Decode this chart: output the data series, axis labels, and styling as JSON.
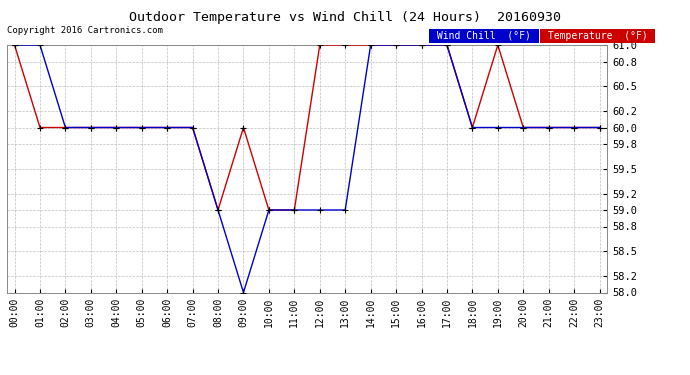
{
  "title": "Outdoor Temperature vs Wind Chill (24 Hours)  20160930",
  "copyright": "Copyright 2016 Cartronics.com",
  "background_color": "#ffffff",
  "plot_bg_color": "#ffffff",
  "grid_color": "#b0b0b0",
  "ylim_min": 58.0,
  "ylim_max": 61.0,
  "yticks": [
    58.0,
    58.2,
    58.5,
    58.8,
    59.0,
    59.2,
    59.5,
    59.8,
    60.0,
    60.2,
    60.5,
    60.8,
    61.0
  ],
  "xtick_labels": [
    "00:00",
    "01:00",
    "02:00",
    "03:00",
    "04:00",
    "05:00",
    "06:00",
    "07:00",
    "08:00",
    "09:00",
    "10:00",
    "11:00",
    "12:00",
    "13:00",
    "14:00",
    "15:00",
    "16:00",
    "17:00",
    "18:00",
    "19:00",
    "20:00",
    "21:00",
    "22:00",
    "23:00"
  ],
  "temp_color": "#cc0000",
  "wind_color": "#0000cc",
  "marker_color": "#000000",
  "legend_wind_bg": "#0000cc",
  "legend_temp_bg": "#cc0000",
  "legend_text_color": "#ffffff",
  "temp_hours": [
    0,
    1,
    2,
    3,
    4,
    5,
    6,
    7,
    8,
    9,
    10,
    11,
    12,
    13,
    14,
    15,
    16,
    17,
    18,
    19,
    20,
    21,
    22,
    23
  ],
  "temp_values": [
    61.0,
    60.0,
    60.0,
    60.0,
    60.0,
    60.0,
    60.0,
    60.0,
    59.0,
    60.0,
    59.0,
    59.0,
    61.0,
    61.0,
    61.0,
    61.0,
    61.0,
    61.0,
    60.0,
    61.0,
    60.0,
    60.0,
    60.0,
    60.0
  ],
  "wind_hours": [
    0,
    1,
    2,
    3,
    4,
    5,
    6,
    7,
    8,
    9,
    10,
    11,
    12,
    13,
    14,
    15,
    16,
    17,
    18,
    19,
    20,
    21,
    22,
    23
  ],
  "wind_values": [
    61.0,
    61.0,
    60.0,
    60.0,
    60.0,
    60.0,
    60.0,
    60.0,
    59.0,
    58.0,
    59.0,
    59.0,
    59.0,
    59.0,
    61.0,
    61.0,
    61.0,
    61.0,
    60.0,
    60.0,
    60.0,
    60.0,
    60.0,
    60.0
  ]
}
